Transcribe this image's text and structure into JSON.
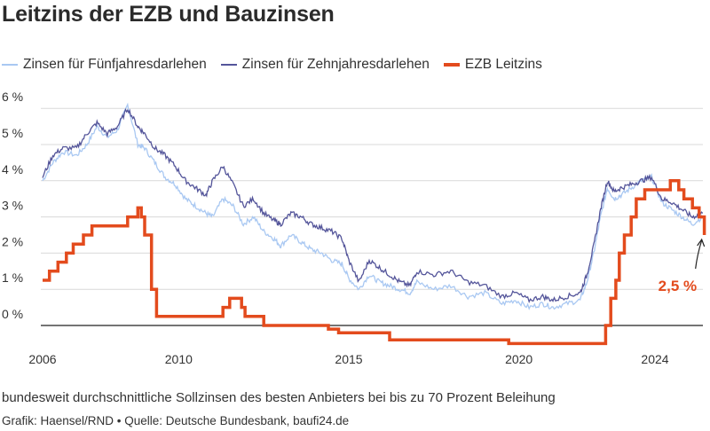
{
  "chart_data": {
    "type": "line",
    "title": "Leitzins der EZB und Bauzinsen",
    "note": "bundesweit durchschnittliche Sollzinsen des besten Anbieters bei bis zu 70 Prozent Beleihung",
    "source": "Grafik: Haensel/RND • Quelle: Deutsche Bundesbank, baufi24.de",
    "legend_position": "top",
    "grid": true,
    "ylim": [
      0,
      6
    ],
    "xlim": [
      2006,
      2025.6
    ],
    "y_ticks": [
      0,
      1,
      2,
      3,
      4,
      5,
      6
    ],
    "y_tick_labels": [
      "0 %",
      "1 %",
      "2 %",
      "3 %",
      "4 %",
      "5 %",
      "6 %"
    ],
    "x_ticks": [
      2006,
      2010,
      2015,
      2020,
      2024
    ],
    "x_tick_labels": [
      "2006",
      "2010",
      "2015",
      "2020",
      "2024"
    ],
    "annotation": {
      "text": "2,5 %",
      "x": 2025.4,
      "y": 2.5
    },
    "series": [
      {
        "name": "Zinsen für Fünfjahresdarlehen",
        "color": "#a9c8f2",
        "style": "thin",
        "x": [
          2006.0,
          2006.3,
          2006.6,
          2007.0,
          2007.3,
          2007.6,
          2007.9,
          2008.2,
          2008.5,
          2008.8,
          2009.0,
          2009.3,
          2009.6,
          2009.9,
          2010.2,
          2010.5,
          2010.8,
          2011.0,
          2011.3,
          2011.6,
          2011.9,
          2012.2,
          2012.5,
          2012.8,
          2013.0,
          2013.3,
          2013.6,
          2013.9,
          2014.2,
          2014.5,
          2014.8,
          2015.0,
          2015.3,
          2015.6,
          2015.9,
          2016.2,
          2016.5,
          2016.8,
          2017.0,
          2017.5,
          2018.0,
          2018.5,
          2019.0,
          2019.5,
          2019.9,
          2020.3,
          2020.7,
          2021.0,
          2021.4,
          2021.8,
          2022.0,
          2022.2,
          2022.4,
          2022.6,
          2022.8,
          2023.0,
          2023.3,
          2023.6,
          2023.9,
          2024.2,
          2024.5,
          2024.8,
          2025.1,
          2025.4
        ],
        "values": [
          4.0,
          4.5,
          4.8,
          4.7,
          5.0,
          5.5,
          5.2,
          5.4,
          6.1,
          5.0,
          4.9,
          4.5,
          4.1,
          3.9,
          3.5,
          3.3,
          3.1,
          3.0,
          3.5,
          3.3,
          2.8,
          3.0,
          2.6,
          2.4,
          2.2,
          2.5,
          2.3,
          2.1,
          2.0,
          1.8,
          1.7,
          1.3,
          1.0,
          1.4,
          1.2,
          1.1,
          1.0,
          0.9,
          1.2,
          1.0,
          1.1,
          0.8,
          0.9,
          0.6,
          0.7,
          0.5,
          0.6,
          0.5,
          0.6,
          0.7,
          1.2,
          2.0,
          3.0,
          3.8,
          3.5,
          3.6,
          3.8,
          4.0,
          4.1,
          3.4,
          3.2,
          3.0,
          2.8,
          3.0
        ]
      },
      {
        "name": "Zinsen für Zehnjahresdarlehen",
        "color": "#54559a",
        "style": "thin",
        "x": [
          2006.0,
          2006.3,
          2006.6,
          2007.0,
          2007.3,
          2007.6,
          2007.9,
          2008.2,
          2008.5,
          2008.8,
          2009.0,
          2009.3,
          2009.6,
          2009.9,
          2010.2,
          2010.5,
          2010.8,
          2011.0,
          2011.3,
          2011.6,
          2011.9,
          2012.2,
          2012.5,
          2012.8,
          2013.0,
          2013.3,
          2013.6,
          2013.9,
          2014.2,
          2014.5,
          2014.8,
          2015.0,
          2015.3,
          2015.6,
          2015.9,
          2016.2,
          2016.5,
          2016.8,
          2017.0,
          2017.5,
          2018.0,
          2018.5,
          2019.0,
          2019.5,
          2019.9,
          2020.3,
          2020.7,
          2021.0,
          2021.4,
          2021.8,
          2022.0,
          2022.2,
          2022.4,
          2022.6,
          2022.8,
          2023.0,
          2023.3,
          2023.6,
          2023.9,
          2024.2,
          2024.5,
          2024.8,
          2025.1,
          2025.4
        ],
        "values": [
          4.1,
          4.7,
          4.9,
          4.9,
          5.3,
          5.6,
          5.3,
          5.5,
          6.0,
          5.5,
          5.3,
          4.9,
          4.7,
          4.4,
          4.0,
          3.8,
          3.6,
          4.0,
          4.4,
          3.9,
          3.3,
          3.5,
          3.1,
          2.9,
          2.8,
          3.1,
          3.0,
          2.8,
          2.7,
          2.6,
          2.4,
          1.8,
          1.2,
          1.8,
          1.6,
          1.4,
          1.2,
          1.1,
          1.5,
          1.4,
          1.5,
          1.2,
          1.1,
          0.8,
          0.9,
          0.7,
          0.8,
          0.7,
          0.8,
          0.9,
          1.4,
          2.2,
          3.2,
          4.0,
          3.7,
          3.8,
          3.9,
          4.0,
          4.1,
          3.5,
          3.4,
          3.2,
          3.0,
          3.1
        ]
      },
      {
        "name": "EZB Leitzins",
        "color": "#e34b1d",
        "style": "thick-step",
        "x": [
          2006.0,
          2006.2,
          2006.45,
          2006.7,
          2006.9,
          2007.2,
          2007.45,
          2008.5,
          2008.8,
          2008.9,
          2009.0,
          2009.2,
          2009.35,
          2011.3,
          2011.5,
          2011.85,
          2011.95,
          2012.5,
          2014.4,
          2014.7,
          2016.2,
          2019.7,
          2022.55,
          2022.7,
          2022.85,
          2022.95,
          2023.1,
          2023.3,
          2023.45,
          2023.7,
          2024.45,
          2024.7,
          2024.85,
          2025.1,
          2025.3,
          2025.45
        ],
        "values": [
          1.25,
          1.5,
          1.75,
          2.0,
          2.25,
          2.5,
          2.75,
          3.0,
          3.25,
          3.0,
          2.5,
          1.0,
          0.25,
          0.5,
          0.75,
          0.5,
          0.25,
          0.0,
          -0.1,
          -0.2,
          -0.4,
          -0.5,
          0.0,
          0.75,
          1.25,
          2.0,
          2.5,
          3.0,
          3.5,
          3.75,
          4.0,
          3.75,
          3.5,
          3.25,
          3.0,
          2.5
        ]
      }
    ]
  }
}
